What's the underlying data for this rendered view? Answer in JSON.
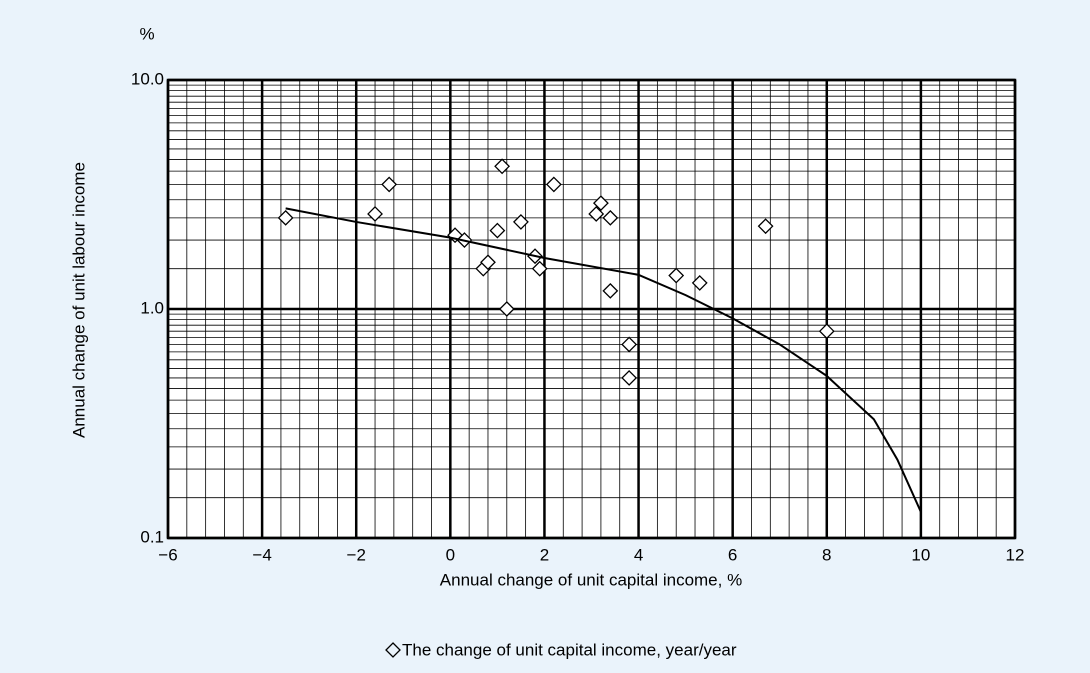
{
  "chart_data": {
    "type": "scatter",
    "x_label": "Annual change of unit capital income, %",
    "y_label": "Annual change of unit labour income",
    "y_unit": "%",
    "log_y": true,
    "grid": true,
    "xlim": [
      -6,
      12
    ],
    "ylim": [
      0.1,
      10
    ],
    "xticks": [
      {
        "value": -6,
        "label": "−6"
      },
      {
        "value": -4,
        "label": "−4"
      },
      {
        "value": -2,
        "label": "−2"
      },
      0,
      2,
      4,
      6,
      8,
      10,
      12
    ],
    "yticks": [
      0.1,
      {
        "value": 1,
        "label": "1.0"
      },
      {
        "value": 10,
        "label": "10.0"
      }
    ],
    "background": "#eaf3fb",
    "series": [
      {
        "name": "The change of unit capital income, year/year",
        "marker": "diamond",
        "color": "#000000",
        "x": [
          -3.5,
          -1.6,
          -1.3,
          0.1,
          0.3,
          0.7,
          0.8,
          1.0,
          1.1,
          1.2,
          1.5,
          1.8,
          1.9,
          2.2,
          3.1,
          3.2,
          3.4,
          3.4,
          3.8,
          3.8,
          4.8,
          5.3,
          6.7,
          8.0
        ],
        "y": [
          2.5,
          2.6,
          3.5,
          2.1,
          2.0,
          1.5,
          1.6,
          2.2,
          4.2,
          1.0,
          2.4,
          1.7,
          1.5,
          3.5,
          2.6,
          2.9,
          2.5,
          1.2,
          0.7,
          0.5,
          1.4,
          1.3,
          2.3,
          0.8
        ]
      },
      {
        "marker": "line",
        "color": "#000000",
        "x": [
          -3.5,
          -2,
          0,
          2,
          4,
          5,
          6,
          7,
          8,
          9,
          9.5,
          10
        ],
        "y": [
          2.75,
          2.4,
          2.05,
          1.67,
          1.41,
          1.15,
          0.91,
          0.7,
          0.51,
          0.33,
          0.22,
          0.13
        ]
      }
    ]
  }
}
